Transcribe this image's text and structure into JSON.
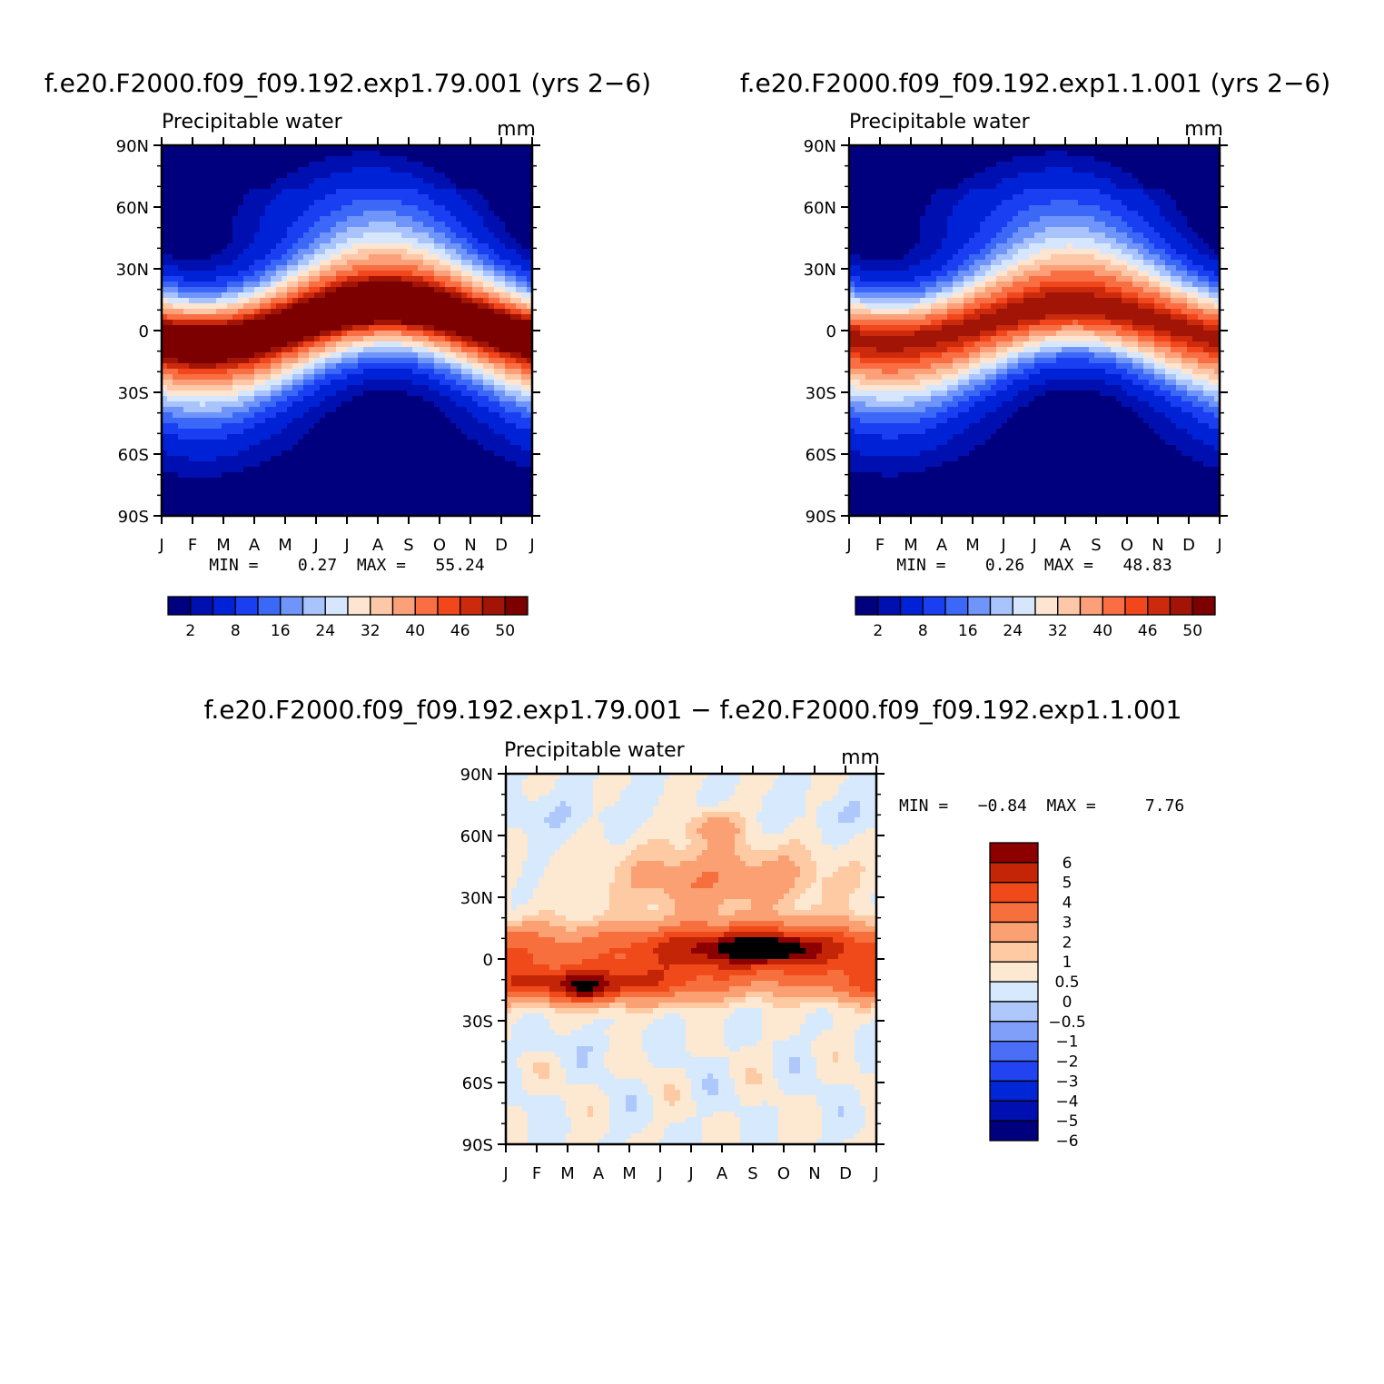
{
  "page": {
    "background": "#ffffff"
  },
  "palettes": {
    "abs_colors": [
      "#00007f",
      "#0010b0",
      "#0022d6",
      "#1a3ff2",
      "#3b68f6",
      "#6f95fa",
      "#a9c3fc",
      "#d6e7fd",
      "#fde5d2",
      "#fdc8a7",
      "#fba078",
      "#f96f43",
      "#f2461d",
      "#cc2a0c",
      "#a11406",
      "#7d0000"
    ],
    "diff_colors": [
      "#00007f",
      "#0010b0",
      "#0026d6",
      "#2143f2",
      "#4b6ef6",
      "#7f9ff9",
      "#aec8fb",
      "#d7e9fd",
      "#fde8d2",
      "#fdcaa4",
      "#fba073",
      "#f66f3d",
      "#f04a1a",
      "#c42506",
      "#8c0000"
    ]
  },
  "chart_data": [
    {
      "id": "panel1",
      "type": "heatmap",
      "title": "f.e20.F2000.f09_f09.192.exp1.79.001 (yrs 2−6)",
      "variable_label": "Precipitable water",
      "units": "mm",
      "x_categories": [
        "J",
        "F",
        "M",
        "A",
        "M",
        "J",
        "J",
        "A",
        "S",
        "O",
        "N",
        "D",
        "J"
      ],
      "y_ticks": [
        "90N",
        "60N",
        "30N",
        "0",
        "30S",
        "60S",
        "90S"
      ],
      "y_range": [
        -90,
        90
      ],
      "equator_max": 55.24,
      "equator_lat_shift": 8,
      "stats_text": "MIN =    0.27  MAX =   55.24",
      "min": 0.27,
      "max": 55.24,
      "colorbar": {
        "orientation": "horizontal",
        "levels": [
          2,
          4,
          8,
          12,
          16,
          20,
          24,
          28,
          32,
          36,
          40,
          44,
          46,
          48,
          50
        ],
        "labels": [
          "2",
          "8",
          "16",
          "24",
          "32",
          "40",
          "46",
          "50"
        ]
      }
    },
    {
      "id": "panel2",
      "type": "heatmap",
      "title": "f.e20.F2000.f09_f09.192.exp1.1.001 (yrs 2−6)",
      "variable_label": "Precipitable water",
      "units": "mm",
      "x_categories": [
        "J",
        "F",
        "M",
        "A",
        "M",
        "J",
        "J",
        "A",
        "S",
        "O",
        "N",
        "D",
        "J"
      ],
      "y_ticks": [
        "90N",
        "60N",
        "30N",
        "0",
        "30S",
        "60S",
        "90S"
      ],
      "y_range": [
        -90,
        90
      ],
      "equator_max": 48.83,
      "equator_lat_shift": 8,
      "stats_text": "MIN =    0.26  MAX =   48.83",
      "min": 0.26,
      "max": 48.83,
      "colorbar": {
        "orientation": "horizontal",
        "levels": [
          2,
          4,
          8,
          12,
          16,
          20,
          24,
          28,
          32,
          36,
          40,
          44,
          46,
          48,
          50
        ],
        "labels": [
          "2",
          "8",
          "16",
          "24",
          "32",
          "40",
          "46",
          "50"
        ]
      }
    },
    {
      "id": "panel3",
      "type": "heatmap",
      "title": "f.e20.F2000.f09_f09.192.exp1.79.001 − f.e20.F2000.f09_f09.192.exp1.1.001",
      "variable_label": "Precipitable water",
      "units": "mm",
      "x_categories": [
        "J",
        "F",
        "M",
        "A",
        "M",
        "J",
        "J",
        "A",
        "S",
        "O",
        "N",
        "D",
        "J"
      ],
      "y_ticks": [
        "90N",
        "60N",
        "30N",
        "0",
        "30S",
        "60S",
        "90S"
      ],
      "y_range": [
        -90,
        90
      ],
      "stats_text": "MIN =   −0.84  MAX =     7.76",
      "min": -0.84,
      "max": 7.76,
      "colorbar": {
        "orientation": "vertical",
        "levels": [
          -6,
          -5,
          -4,
          -3,
          -2,
          -1,
          -0.5,
          0,
          0.5,
          1,
          2,
          3,
          4,
          5,
          6
        ],
        "labels": [
          "6",
          "5",
          "4",
          "3",
          "2",
          "1",
          "0.5",
          "0",
          "−0.5",
          "−1",
          "−2",
          "−3",
          "−4",
          "−5",
          "−6"
        ]
      }
    }
  ]
}
